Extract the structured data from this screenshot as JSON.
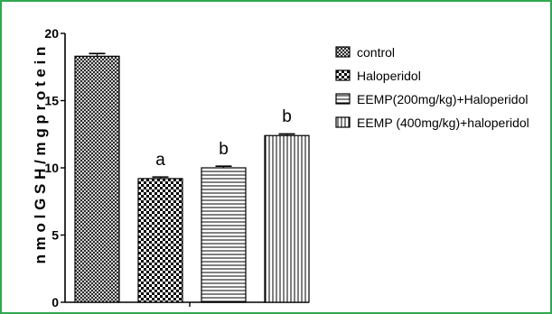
{
  "chart_data": {
    "type": "bar",
    "title": "",
    "xlabel": "",
    "ylabel": "n m o l G S H / m g p r o t e i n",
    "ylim": [
      0,
      20
    ],
    "yticks": [
      0,
      5,
      10,
      15,
      20
    ],
    "grid": false,
    "legend_position": "right",
    "series": [
      {
        "name": "control",
        "value": 18.3,
        "error": 0.2,
        "pattern": "crosshatch",
        "annotation": ""
      },
      {
        "name": "Haloperidol",
        "value": 9.2,
        "error": 0.12,
        "pattern": "checker",
        "annotation": "a"
      },
      {
        "name": "EEMP(200mg/kg)+Haloperidol",
        "value": 10.0,
        "error": 0.12,
        "pattern": "horizontal",
        "annotation": "b"
      },
      {
        "name": "EEMP (400mg/kg)+haloperidol",
        "value": 12.4,
        "error": 0.12,
        "pattern": "vertical",
        "annotation": "b"
      }
    ]
  },
  "colors": {
    "frame": "#2fa84f",
    "ink": "#000000",
    "background": "#ffffff"
  }
}
